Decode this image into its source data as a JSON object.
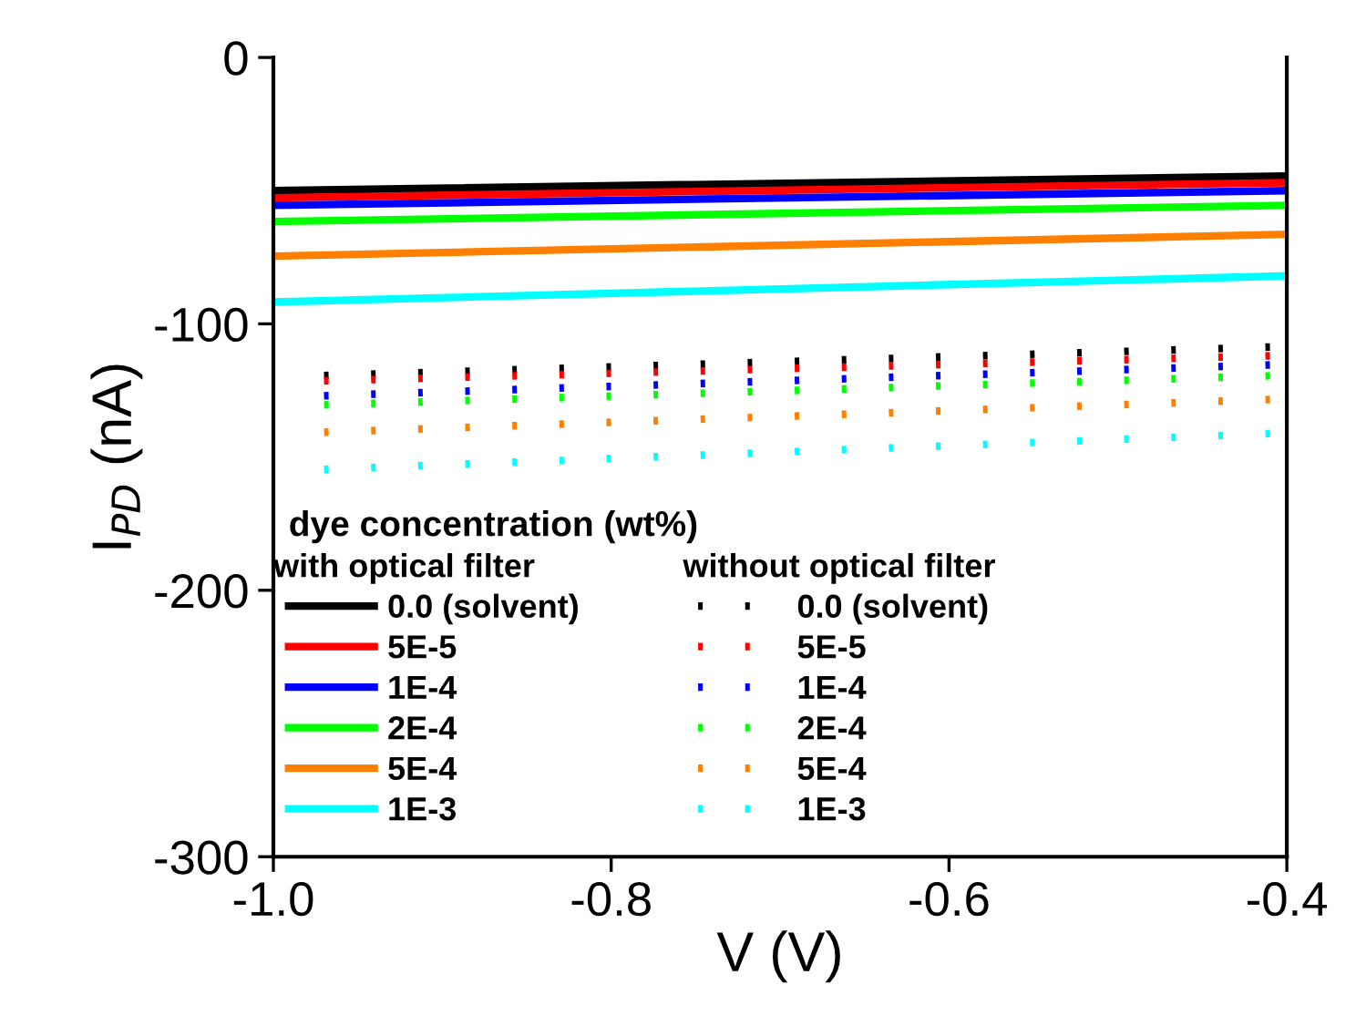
{
  "chart_data": {
    "type": "line",
    "xlabel": "V (V)",
    "ylabel": "I$_{PD}$ (nA)",
    "legend_title": "dye concentration (wt%)",
    "annotations": [
      "with optical filter",
      "without optical filter"
    ],
    "xlim": [
      -1.0,
      -0.4
    ],
    "ylim": [
      -300,
      0
    ],
    "xticks": [
      {
        "value": -1.0,
        "label": "-1.0"
      },
      {
        "value": -0.8,
        "label": "-0.8"
      },
      {
        "value": -0.6,
        "label": "-0.6"
      },
      {
        "value": -0.4,
        "label": "-0.4"
      }
    ],
    "yticks": [
      {
        "value": -300,
        "label": "-300"
      },
      {
        "value": -200,
        "label": "-200"
      },
      {
        "value": -100,
        "label": "-100"
      },
      {
        "value": 0,
        "label": "0"
      }
    ],
    "grid": false,
    "legend": "bottom",
    "marker": "none",
    "series": [
      {
        "name": "0.0 (solvent)",
        "color": "#000000",
        "line_style": "solid",
        "x": [
          -1.0,
          -0.4
        ],
        "values": [
          -50,
          -44.5
        ]
      },
      {
        "name": "5E-5",
        "color": "#ff0000",
        "line_style": "solid",
        "x": [
          -1.0,
          -0.4
        ],
        "values": [
          -52.7,
          -47
        ]
      },
      {
        "name": "1E-4",
        "color": "#0000ff",
        "line_style": "solid",
        "x": [
          -1.0,
          -0.4
        ],
        "values": [
          -55.5,
          -50
        ]
      },
      {
        "name": "2E-4",
        "color": "#00ff00",
        "line_style": "solid",
        "x": [
          -1.0,
          -0.4
        ],
        "values": [
          -61.6,
          -55.5
        ]
      },
      {
        "name": "5E-4",
        "color": "#ff8000",
        "line_style": "solid",
        "x": [
          -1.0,
          -0.4
        ],
        "values": [
          -74.6,
          -66.4
        ]
      },
      {
        "name": "1E-3",
        "color": "#00ffff",
        "line_style": "solid",
        "x": [
          -1.0,
          -0.4
        ],
        "values": [
          -91.8,
          -82
        ]
      },
      {
        "name": "0.0 (solvent)",
        "color": "#000000",
        "line_style": "dotted",
        "x": [
          -0.97,
          -0.41
        ],
        "values": [
          -119.4,
          -108.7
        ]
      },
      {
        "name": "5E-5",
        "color": "#ff0000",
        "line_style": "dotted",
        "x": [
          -0.97,
          -0.41
        ],
        "values": [
          -121.4,
          -112
        ]
      },
      {
        "name": "1E-4",
        "color": "#0000ff",
        "line_style": "dotted",
        "x": [
          -0.97,
          -0.41
        ],
        "values": [
          -127,
          -115.4
        ]
      },
      {
        "name": "2E-4",
        "color": "#00ff00",
        "line_style": "dotted",
        "x": [
          -0.97,
          -0.41
        ],
        "values": [
          -130.4,
          -119.5
        ]
      },
      {
        "name": "5E-4",
        "color": "#ff8000",
        "line_style": "dotted",
        "x": [
          -0.97,
          -0.41
        ],
        "values": [
          -140.7,
          -128.4
        ]
      },
      {
        "name": "1E-3",
        "color": "#00ffff",
        "line_style": "dotted",
        "x": [
          -0.97,
          -0.41
        ],
        "values": [
          -154.6,
          -141.2
        ]
      }
    ]
  }
}
